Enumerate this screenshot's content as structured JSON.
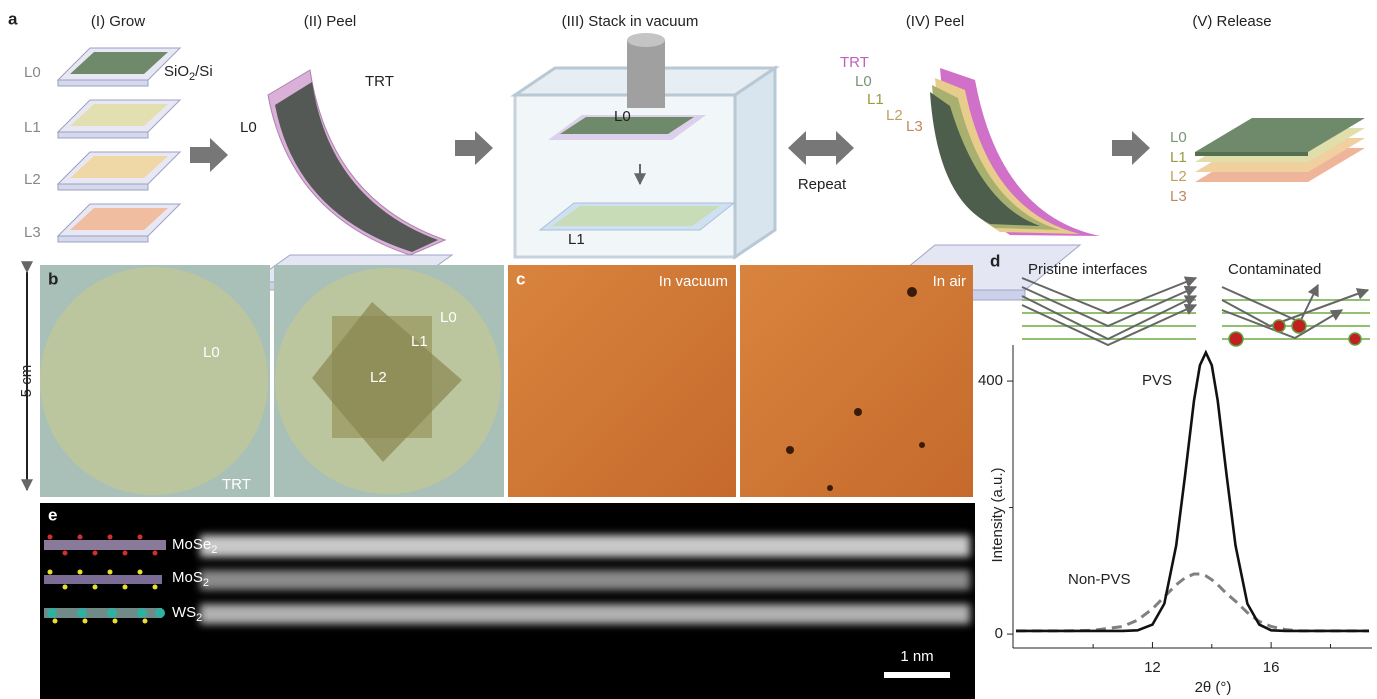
{
  "panel_a": {
    "label": "a",
    "steps": [
      "(I) Grow",
      "(II) Peel",
      "(III) Stack in vacuum",
      "(IV) Peel",
      "(V) Release"
    ],
    "grow_layers": [
      "L0",
      "L1",
      "L2",
      "L3"
    ],
    "substrate": [
      "SiO",
      "2",
      "/Si"
    ],
    "peel_labels": [
      "TRT",
      "L0"
    ],
    "stack_labels": [
      "L0",
      "L1"
    ],
    "repeat": "Repeat",
    "peel2_labels": [
      "TRT",
      "L0",
      "L1",
      "L2",
      "L3"
    ],
    "release_labels": [
      "L0",
      "L1",
      "L2",
      "L3"
    ]
  },
  "panel_b": {
    "label": "b",
    "scale": "5 cm",
    "left": [
      "L0",
      "TRT"
    ],
    "right": [
      "L0",
      "L1",
      "L2"
    ]
  },
  "panel_c": {
    "label": "c",
    "left": "In vacuum",
    "right": "In air"
  },
  "panel_d": {
    "label": "d",
    "schematics": [
      "Pristine interfaces",
      "Contaminated"
    ]
  },
  "panel_e": {
    "label": "e",
    "layers": [
      [
        "MoSe",
        "2"
      ],
      [
        "MoS",
        "2"
      ],
      [
        "WS",
        "2"
      ]
    ],
    "scale": "1 nm"
  },
  "chart_data": {
    "type": "line",
    "x_label": "2θ (°)",
    "y_label": "Intensity (a.u.)",
    "x": [
      7.4,
      9,
      10,
      11,
      11.5,
      12,
      12.4,
      12.8,
      13.1,
      13.4,
      13.6,
      13.8,
      14,
      14.2,
      14.5,
      14.8,
      15.2,
      15.6,
      16,
      16.5,
      17,
      18,
      19.3
    ],
    "series": [
      {
        "name": "PVS",
        "color": "#111111",
        "dashed": false,
        "values": [
          5,
          5,
          5,
          5,
          6,
          15,
          48,
          140,
          251,
          369,
          425,
          445,
          425,
          369,
          251,
          140,
          48,
          15,
          6,
          5,
          5,
          5,
          5
        ]
      },
      {
        "name": "Non-PVS",
        "color": "#808080",
        "dashed": true,
        "values": [
          5,
          5,
          6,
          12,
          22,
          40,
          59,
          78,
          89,
          95,
          95,
          92,
          86,
          78,
          64,
          52,
          34,
          20,
          12,
          7,
          5,
          5,
          5
        ]
      }
    ],
    "xlim": [
      7.3,
      19.4
    ],
    "ylim": [
      -22,
      457
    ],
    "xticks": [
      12,
      16
    ],
    "yticks": [
      0,
      400
    ],
    "xminor": [
      10,
      14,
      18
    ],
    "yminor": [
      200
    ]
  }
}
